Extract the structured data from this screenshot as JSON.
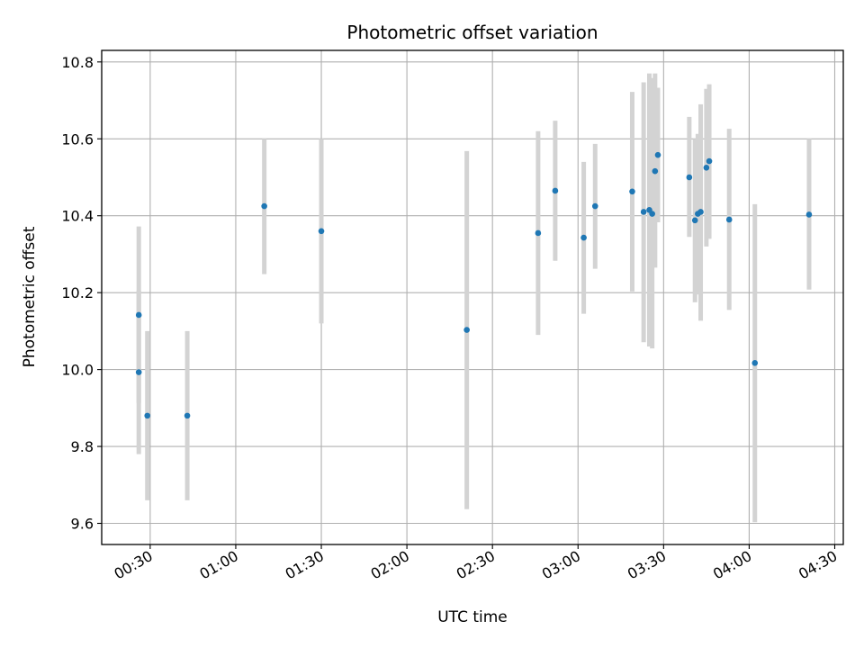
{
  "chart_data": {
    "type": "scatter",
    "title": "Photometric offset variation",
    "xlabel": "UTC time",
    "ylabel": "Photometric offset",
    "x_ticks": [
      "00:30",
      "01:00",
      "01:30",
      "02:00",
      "02:30",
      "03:00",
      "03:30",
      "04:00",
      "04:30"
    ],
    "y_ticks": [
      "9.6",
      "9.8",
      "10.0",
      "10.2",
      "10.4",
      "10.6",
      "10.8"
    ],
    "xlim": [
      "00:13",
      "04:33"
    ],
    "ylim": [
      9.545,
      10.83
    ],
    "grid": true,
    "colors": {
      "points": "#1f77b4",
      "error_bars": "#d3d3d3",
      "grid": "#b0b0b0"
    },
    "points": [
      {
        "x": "00:26",
        "y": 10.142,
        "ylow": 9.913,
        "yhigh": 10.372
      },
      {
        "x": "00:26",
        "y": 9.993,
        "ylow": 9.78,
        "yhigh": 10.205
      },
      {
        "x": "00:29",
        "y": 9.88,
        "ylow": 9.66,
        "yhigh": 10.1
      },
      {
        "x": "00:43",
        "y": 9.88,
        "ylow": 9.66,
        "yhigh": 10.1
      },
      {
        "x": "01:10",
        "y": 10.425,
        "ylow": 10.248,
        "yhigh": 10.6
      },
      {
        "x": "01:30",
        "y": 10.36,
        "ylow": 10.12,
        "yhigh": 10.6
      },
      {
        "x": "02:21",
        "y": 10.103,
        "ylow": 9.637,
        "yhigh": 10.568
      },
      {
        "x": "02:46",
        "y": 10.355,
        "ylow": 10.09,
        "yhigh": 10.62
      },
      {
        "x": "02:52",
        "y": 10.465,
        "ylow": 10.283,
        "yhigh": 10.647
      },
      {
        "x": "03:02",
        "y": 10.343,
        "ylow": 10.145,
        "yhigh": 10.54
      },
      {
        "x": "03:06",
        "y": 10.425,
        "ylow": 10.262,
        "yhigh": 10.587
      },
      {
        "x": "03:19",
        "y": 10.463,
        "ylow": 10.203,
        "yhigh": 10.722
      },
      {
        "x": "03:23",
        "y": 10.41,
        "ylow": 10.071,
        "yhigh": 10.747
      },
      {
        "x": "03:25",
        "y": 10.415,
        "ylow": 10.06,
        "yhigh": 10.77
      },
      {
        "x": "03:26",
        "y": 10.405,
        "ylow": 10.055,
        "yhigh": 10.758
      },
      {
        "x": "03:27",
        "y": 10.516,
        "ylow": 10.265,
        "yhigh": 10.77
      },
      {
        "x": "03:28",
        "y": 10.558,
        "ylow": 10.383,
        "yhigh": 10.733
      },
      {
        "x": "03:39",
        "y": 10.5,
        "ylow": 10.345,
        "yhigh": 10.657
      },
      {
        "x": "03:41",
        "y": 10.388,
        "ylow": 10.175,
        "yhigh": 10.6
      },
      {
        "x": "03:42",
        "y": 10.405,
        "ylow": 10.195,
        "yhigh": 10.613
      },
      {
        "x": "03:43",
        "y": 10.41,
        "ylow": 10.127,
        "yhigh": 10.69
      },
      {
        "x": "03:45",
        "y": 10.525,
        "ylow": 10.32,
        "yhigh": 10.73
      },
      {
        "x": "03:46",
        "y": 10.542,
        "ylow": 10.34,
        "yhigh": 10.742
      },
      {
        "x": "03:53",
        "y": 10.39,
        "ylow": 10.155,
        "yhigh": 10.626
      },
      {
        "x": "04:02",
        "y": 10.017,
        "ylow": 9.603,
        "yhigh": 10.43
      },
      {
        "x": "04:21",
        "y": 10.403,
        "ylow": 10.208,
        "yhigh": 10.6
      }
    ]
  }
}
